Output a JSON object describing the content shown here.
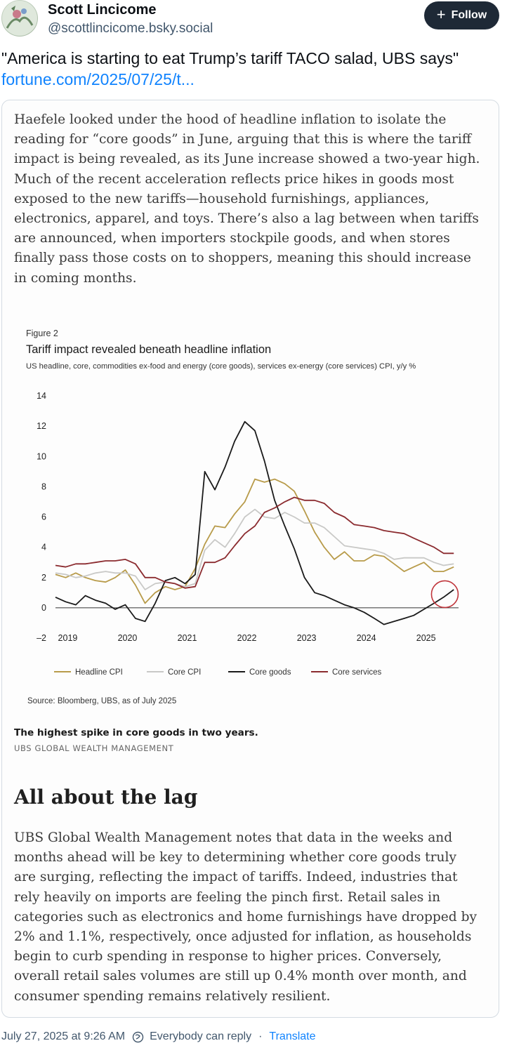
{
  "author": {
    "name": "Scott Lincicome",
    "handle": "@scottlincicome.bsky.social",
    "follow_label": "Follow"
  },
  "post": {
    "text": "\"America is starting to eat Trump’s tariff TACO salad, UBS says\"",
    "link": "fortune.com/2025/07/25/t..."
  },
  "embed": {
    "paragraph1": [
      "Haefele looked under the hood of headline inflation to isolate the",
      "reading for “core goods” in June, arguing that this is where the tariff",
      "impact is being revealed, as its June increase showed a two-year high.",
      "Much of the recent acceleration reflects price hikes in goods most",
      "exposed to the new tariffs—household furnishings, appliances,",
      "electronics, apparel, and toys. There’s also a lag between when tariffs",
      "are announced, when importers stockpile goods, and when stores",
      "finally pass those costs on to shoppers, meaning this should increase",
      "in coming months."
    ],
    "figure_label": "Figure 2",
    "source": "Source: Bloomberg, UBS, as of July 2025",
    "caption": "The highest spike in core goods in two years.",
    "caption_credit": "UBS GLOBAL WEALTH MANAGEMENT",
    "heading": "All about the lag",
    "paragraph2": [
      "UBS Global Wealth Management notes that data in the weeks and",
      "months ahead will be key to determining whether core goods truly",
      "are surging, reflecting the impact of tariffs. Indeed, industries that",
      "rely heavily on imports are feeling the pinch first. Retail sales in",
      "categories such as electronics and home furnishings have dropped by",
      "2% and 1.1%, respectively, once adjusted for inflation, as households",
      "begin to curb spending in response to higher prices. Conversely,",
      "overall retail sales volumes are still up 0.4% month over month, and",
      "consumer spending remains relatively resilient."
    ]
  },
  "chart_data": {
    "type": "line",
    "title": "Tariff impact revealed beneath headline inflation",
    "subtitle": "US headline, core, commodities ex-food and energy (core goods), services ex-energy (core services) CPI, y/y %",
    "x_ticks": [
      "2019",
      "2020",
      "2021",
      "2022",
      "2023",
      "2024",
      "2025"
    ],
    "y_ticks": [
      14,
      12,
      10,
      8,
      6,
      4,
      2,
      0,
      -2
    ],
    "ylim": [
      -2,
      14
    ],
    "xlim": [
      2018.83,
      2025.58
    ],
    "legend_position": "bottom",
    "highlight_circle": {
      "x": 2025.35,
      "y": 0.9
    },
    "series": [
      {
        "name": "Headline CPI",
        "color": "#b89b4a",
        "x": [
          2018.83,
          2019.0,
          2019.17,
          2019.33,
          2019.5,
          2019.67,
          2019.83,
          2020.0,
          2020.17,
          2020.33,
          2020.5,
          2020.67,
          2020.83,
          2021.0,
          2021.17,
          2021.33,
          2021.5,
          2021.67,
          2021.83,
          2022.0,
          2022.17,
          2022.33,
          2022.5,
          2022.67,
          2022.83,
          2023.0,
          2023.17,
          2023.33,
          2023.5,
          2023.67,
          2023.83,
          2024.0,
          2024.17,
          2024.33,
          2024.5,
          2024.67,
          2024.83,
          2025.0,
          2025.17,
          2025.33,
          2025.5
        ],
        "y": [
          2.2,
          2.0,
          2.3,
          2.0,
          1.8,
          1.7,
          2.0,
          2.5,
          1.5,
          0.3,
          1.0,
          1.4,
          1.2,
          1.4,
          2.6,
          4.2,
          5.4,
          5.3,
          6.2,
          7.0,
          8.5,
          8.3,
          8.5,
          8.2,
          7.7,
          6.4,
          5.0,
          4.0,
          3.2,
          3.7,
          3.1,
          3.1,
          3.5,
          3.4,
          2.9,
          2.4,
          2.7,
          3.0,
          2.4,
          2.4,
          2.7
        ],
        "note": "approximate values read from chart"
      },
      {
        "name": "Core CPI",
        "color": "#c9c9c7",
        "x": [
          2018.83,
          2019.0,
          2019.17,
          2019.33,
          2019.5,
          2019.67,
          2019.83,
          2020.0,
          2020.17,
          2020.33,
          2020.5,
          2020.67,
          2020.83,
          2021.0,
          2021.17,
          2021.33,
          2021.5,
          2021.67,
          2021.83,
          2022.0,
          2022.17,
          2022.33,
          2022.5,
          2022.67,
          2022.83,
          2023.0,
          2023.17,
          2023.33,
          2023.5,
          2023.67,
          2023.83,
          2024.0,
          2024.17,
          2024.33,
          2024.5,
          2024.67,
          2024.83,
          2025.0,
          2025.17,
          2025.33,
          2025.5
        ],
        "y": [
          2.3,
          2.2,
          2.0,
          2.1,
          2.3,
          2.4,
          2.3,
          2.3,
          2.1,
          1.2,
          1.6,
          1.7,
          1.6,
          1.4,
          1.6,
          3.8,
          4.5,
          4.0,
          4.9,
          6.0,
          6.5,
          6.0,
          5.9,
          6.3,
          6.0,
          5.6,
          5.6,
          5.3,
          4.7,
          4.1,
          4.0,
          3.9,
          3.8,
          3.6,
          3.2,
          3.3,
          3.3,
          3.3,
          3.0,
          2.8,
          2.9
        ],
        "note": "approximate values read from chart"
      },
      {
        "name": "Core goods",
        "color": "#1a1a1a",
        "x": [
          2018.83,
          2019.0,
          2019.17,
          2019.33,
          2019.5,
          2019.67,
          2019.83,
          2020.0,
          2020.17,
          2020.33,
          2020.5,
          2020.67,
          2020.83,
          2021.0,
          2021.17,
          2021.33,
          2021.5,
          2021.67,
          2021.83,
          2022.0,
          2022.17,
          2022.33,
          2022.5,
          2022.67,
          2022.83,
          2023.0,
          2023.17,
          2023.33,
          2023.5,
          2023.67,
          2023.83,
          2024.0,
          2024.17,
          2024.33,
          2024.5,
          2024.67,
          2024.83,
          2025.0,
          2025.17,
          2025.33,
          2025.5
        ],
        "y": [
          0.7,
          0.4,
          0.2,
          0.8,
          0.5,
          0.3,
          -0.1,
          0.2,
          -0.7,
          -0.9,
          0.3,
          1.8,
          2.0,
          1.6,
          2.2,
          9.0,
          7.8,
          9.3,
          11.0,
          12.3,
          11.7,
          9.7,
          7.1,
          5.4,
          3.9,
          2.0,
          1.0,
          0.8,
          0.5,
          0.2,
          0.0,
          -0.3,
          -0.7,
          -1.1,
          -0.9,
          -0.7,
          -0.5,
          -0.1,
          0.3,
          0.7,
          1.2
        ],
        "note": "approximate values read from chart"
      },
      {
        "name": "Core services",
        "color": "#8b2b2f",
        "x": [
          2018.83,
          2019.0,
          2019.17,
          2019.33,
          2019.5,
          2019.67,
          2019.83,
          2020.0,
          2020.17,
          2020.33,
          2020.5,
          2020.67,
          2020.83,
          2021.0,
          2021.17,
          2021.33,
          2021.5,
          2021.67,
          2021.83,
          2022.0,
          2022.17,
          2022.33,
          2022.5,
          2022.67,
          2022.83,
          2023.0,
          2023.17,
          2023.33,
          2023.5,
          2023.67,
          2023.83,
          2024.0,
          2024.17,
          2024.33,
          2024.5,
          2024.67,
          2024.83,
          2025.0,
          2025.17,
          2025.33,
          2025.5
        ],
        "y": [
          2.8,
          2.7,
          2.9,
          2.9,
          3.0,
          3.1,
          3.1,
          3.2,
          2.9,
          2.0,
          2.0,
          1.7,
          1.6,
          1.3,
          1.4,
          3.0,
          3.0,
          3.3,
          4.1,
          4.9,
          5.4,
          6.3,
          6.6,
          7.0,
          7.3,
          7.1,
          7.1,
          6.9,
          6.3,
          6.0,
          5.5,
          5.4,
          5.3,
          5.1,
          5.0,
          4.9,
          4.6,
          4.3,
          4.0,
          3.6,
          3.6
        ],
        "note": "approximate values read from chart"
      }
    ]
  },
  "footer": {
    "timestamp": "July 27, 2025 at 9:26 AM",
    "reply_setting": "Everybody can reply",
    "separator": "·",
    "translate": "Translate"
  }
}
